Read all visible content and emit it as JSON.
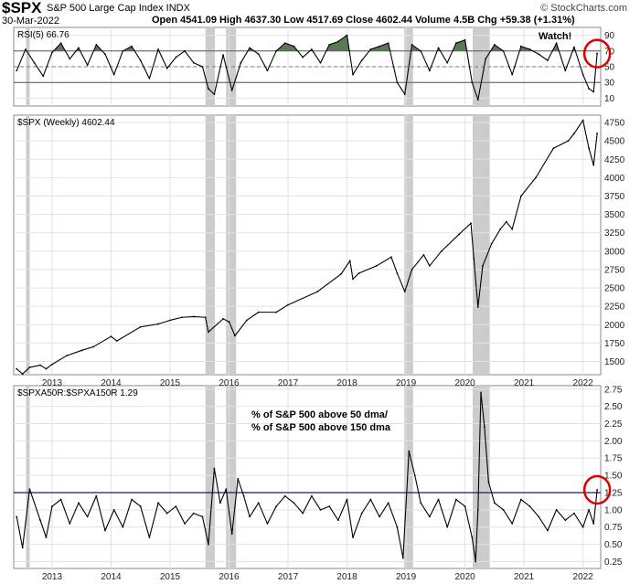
{
  "header": {
    "symbol": "$SPX",
    "description": "S&P 500 Large Cap Index INDX",
    "source": "© StockCharts.com",
    "date": "30-Mar-2022",
    "ohlc": "Open 4541.09  High 4637.30  Low 4517.69  Close 4602.44  Volume 4.5B  Chg +59.38 (+1.31%)"
  },
  "colors": {
    "bands": "#cccccc",
    "rsi_fill": "#5a7a55",
    "ratio_ref": "#1a1a6e",
    "callout": "#dd0000",
    "watch": "#1010c0"
  },
  "chart_data": [
    {
      "type": "line",
      "panel": "rsi",
      "legend": "RSI(5) 66.76",
      "annotation": "Watch!",
      "ylim": [
        0,
        100
      ],
      "yticks": [
        10,
        30,
        50,
        70,
        90
      ],
      "thresholds": [
        30,
        50,
        70
      ],
      "x": [
        2012.4,
        2012.55,
        2012.7,
        2012.85,
        2013.0,
        2013.15,
        2013.3,
        2013.45,
        2013.6,
        2013.75,
        2013.9,
        2014.05,
        2014.2,
        2014.35,
        2014.5,
        2014.65,
        2014.8,
        2014.95,
        2015.1,
        2015.25,
        2015.4,
        2015.55,
        2015.65,
        2015.75,
        2015.9,
        2016.05,
        2016.2,
        2016.35,
        2016.5,
        2016.65,
        2016.8,
        2016.95,
        2017.1,
        2017.25,
        2017.4,
        2017.55,
        2017.7,
        2017.85,
        2018.0,
        2018.1,
        2018.25,
        2018.4,
        2018.55,
        2018.7,
        2018.85,
        2018.98,
        2019.1,
        2019.25,
        2019.4,
        2019.55,
        2019.7,
        2019.85,
        2020.0,
        2020.12,
        2020.22,
        2020.35,
        2020.5,
        2020.65,
        2020.8,
        2020.95,
        2021.1,
        2021.25,
        2021.4,
        2021.55,
        2021.7,
        2021.85,
        2022.0,
        2022.1,
        2022.18,
        2022.24
      ],
      "y": [
        45,
        72,
        55,
        38,
        68,
        80,
        60,
        74,
        52,
        78,
        66,
        40,
        70,
        76,
        58,
        35,
        72,
        48,
        62,
        70,
        55,
        50,
        22,
        15,
        65,
        20,
        55,
        74,
        66,
        45,
        70,
        80,
        76,
        62,
        72,
        55,
        78,
        82,
        90,
        40,
        58,
        72,
        76,
        80,
        30,
        15,
        78,
        70,
        45,
        74,
        55,
        80,
        84,
        30,
        8,
        60,
        78,
        70,
        40,
        76,
        72,
        66,
        58,
        80,
        45,
        75,
        40,
        22,
        18,
        66.76
      ]
    },
    {
      "type": "line",
      "panel": "price",
      "legend": "$SPX (Weekly) 4602.44",
      "ylim": [
        1320,
        4850
      ],
      "yticks": [
        1500,
        1750,
        2000,
        2250,
        2500,
        2750,
        3000,
        3250,
        3500,
        3750,
        4000,
        4250,
        4500,
        4750
      ],
      "x": [
        2012.4,
        2012.5,
        2012.62,
        2012.8,
        2012.9,
        2013.0,
        2013.25,
        2013.5,
        2013.7,
        2014.0,
        2014.1,
        2014.5,
        2014.8,
        2015.0,
        2015.2,
        2015.4,
        2015.6,
        2015.65,
        2015.9,
        2016.0,
        2016.1,
        2016.3,
        2016.5,
        2016.8,
        2017.0,
        2017.5,
        2017.9,
        2018.05,
        2018.1,
        2018.2,
        2018.5,
        2018.75,
        2018.85,
        2018.98,
        2019.1,
        2019.3,
        2019.4,
        2019.6,
        2019.9,
        2020.1,
        2020.15,
        2020.22,
        2020.3,
        2020.45,
        2020.6,
        2020.7,
        2020.8,
        2020.95,
        2021.2,
        2021.5,
        2021.75,
        2021.85,
        2022.0,
        2022.1,
        2022.18,
        2022.24
      ],
      "y": [
        1400,
        1330,
        1420,
        1450,
        1400,
        1460,
        1580,
        1650,
        1700,
        1840,
        1780,
        1970,
        2010,
        2060,
        2100,
        2110,
        2100,
        1900,
        2080,
        2040,
        1850,
        2060,
        2170,
        2170,
        2270,
        2450,
        2690,
        2870,
        2620,
        2700,
        2800,
        2920,
        2700,
        2450,
        2750,
        2950,
        2800,
        3000,
        3230,
        3380,
        2900,
        2240,
        2800,
        3100,
        3300,
        3400,
        3300,
        3750,
        4000,
        4400,
        4500,
        4600,
        4780,
        4400,
        4170,
        4602.44
      ]
    },
    {
      "type": "line",
      "panel": "ratio",
      "legend": "$SPXA50R:$SPXA150R 1.29",
      "annotation_lines": [
        "% of S&P 500 above 50 dma/",
        "% of S&P 500 above 150 dma"
      ],
      "ylim": [
        0.15,
        2.8
      ],
      "yticks": [
        0.25,
        0.5,
        0.75,
        1.0,
        1.25,
        1.5,
        1.75,
        2.0,
        2.25,
        2.5,
        2.75
      ],
      "reference": 1.25,
      "x": [
        2012.4,
        2012.5,
        2012.62,
        2012.8,
        2012.9,
        2013.0,
        2013.15,
        2013.3,
        2013.45,
        2013.6,
        2013.75,
        2013.9,
        2014.05,
        2014.2,
        2014.35,
        2014.5,
        2014.65,
        2014.8,
        2014.95,
        2015.1,
        2015.25,
        2015.4,
        2015.55,
        2015.65,
        2015.75,
        2015.85,
        2015.95,
        2016.05,
        2016.15,
        2016.25,
        2016.35,
        2016.5,
        2016.65,
        2016.8,
        2016.95,
        2017.1,
        2017.25,
        2017.4,
        2017.55,
        2017.7,
        2017.85,
        2018.0,
        2018.1,
        2018.25,
        2018.4,
        2018.55,
        2018.7,
        2018.85,
        2018.95,
        2019.05,
        2019.15,
        2019.25,
        2019.4,
        2019.55,
        2019.7,
        2019.85,
        2020.0,
        2020.12,
        2020.18,
        2020.22,
        2020.27,
        2020.33,
        2020.4,
        2020.5,
        2020.65,
        2020.8,
        2020.95,
        2021.1,
        2021.25,
        2021.4,
        2021.55,
        2021.7,
        2021.85,
        2022.0,
        2022.1,
        2022.18,
        2022.24
      ],
      "y": [
        0.9,
        0.45,
        1.3,
        0.85,
        0.6,
        1.05,
        1.15,
        0.8,
        1.1,
        0.9,
        1.2,
        0.7,
        1.0,
        0.75,
        1.15,
        1.05,
        0.6,
        1.1,
        0.95,
        1.05,
        0.8,
        0.95,
        0.9,
        0.5,
        1.6,
        1.1,
        1.3,
        0.65,
        1.45,
        1.2,
        0.9,
        1.1,
        0.8,
        1.05,
        1.2,
        1.1,
        0.95,
        1.2,
        1.0,
        1.05,
        0.85,
        1.15,
        0.6,
        0.95,
        1.15,
        0.9,
        1.1,
        0.75,
        0.3,
        1.85,
        1.5,
        1.1,
        0.9,
        1.15,
        0.75,
        1.15,
        1.05,
        0.6,
        0.25,
        1.0,
        2.7,
        2.2,
        1.4,
        1.1,
        1.0,
        0.8,
        1.15,
        1.05,
        0.9,
        0.7,
        1.0,
        0.85,
        0.95,
        0.75,
        1.0,
        0.8,
        1.29
      ]
    }
  ],
  "x_axis": {
    "xlim": [
      2012.35,
      2022.3
    ],
    "ticks": [
      "2013",
      "2014",
      "2015",
      "2016",
      "2017",
      "2018",
      "2019",
      "2020",
      "2021",
      "2022"
    ]
  },
  "shaded_periods": [
    [
      2012.56,
      2012.62
    ],
    [
      2015.6,
      2015.76
    ],
    [
      2015.95,
      2016.12
    ],
    [
      2018.97,
      2019.12
    ],
    [
      2020.13,
      2020.42
    ]
  ],
  "highlights": [
    {
      "panel": "rsi",
      "x": 2022.24,
      "y": 66.76
    },
    {
      "panel": "ratio",
      "x": 2022.24,
      "y": 1.29
    }
  ]
}
